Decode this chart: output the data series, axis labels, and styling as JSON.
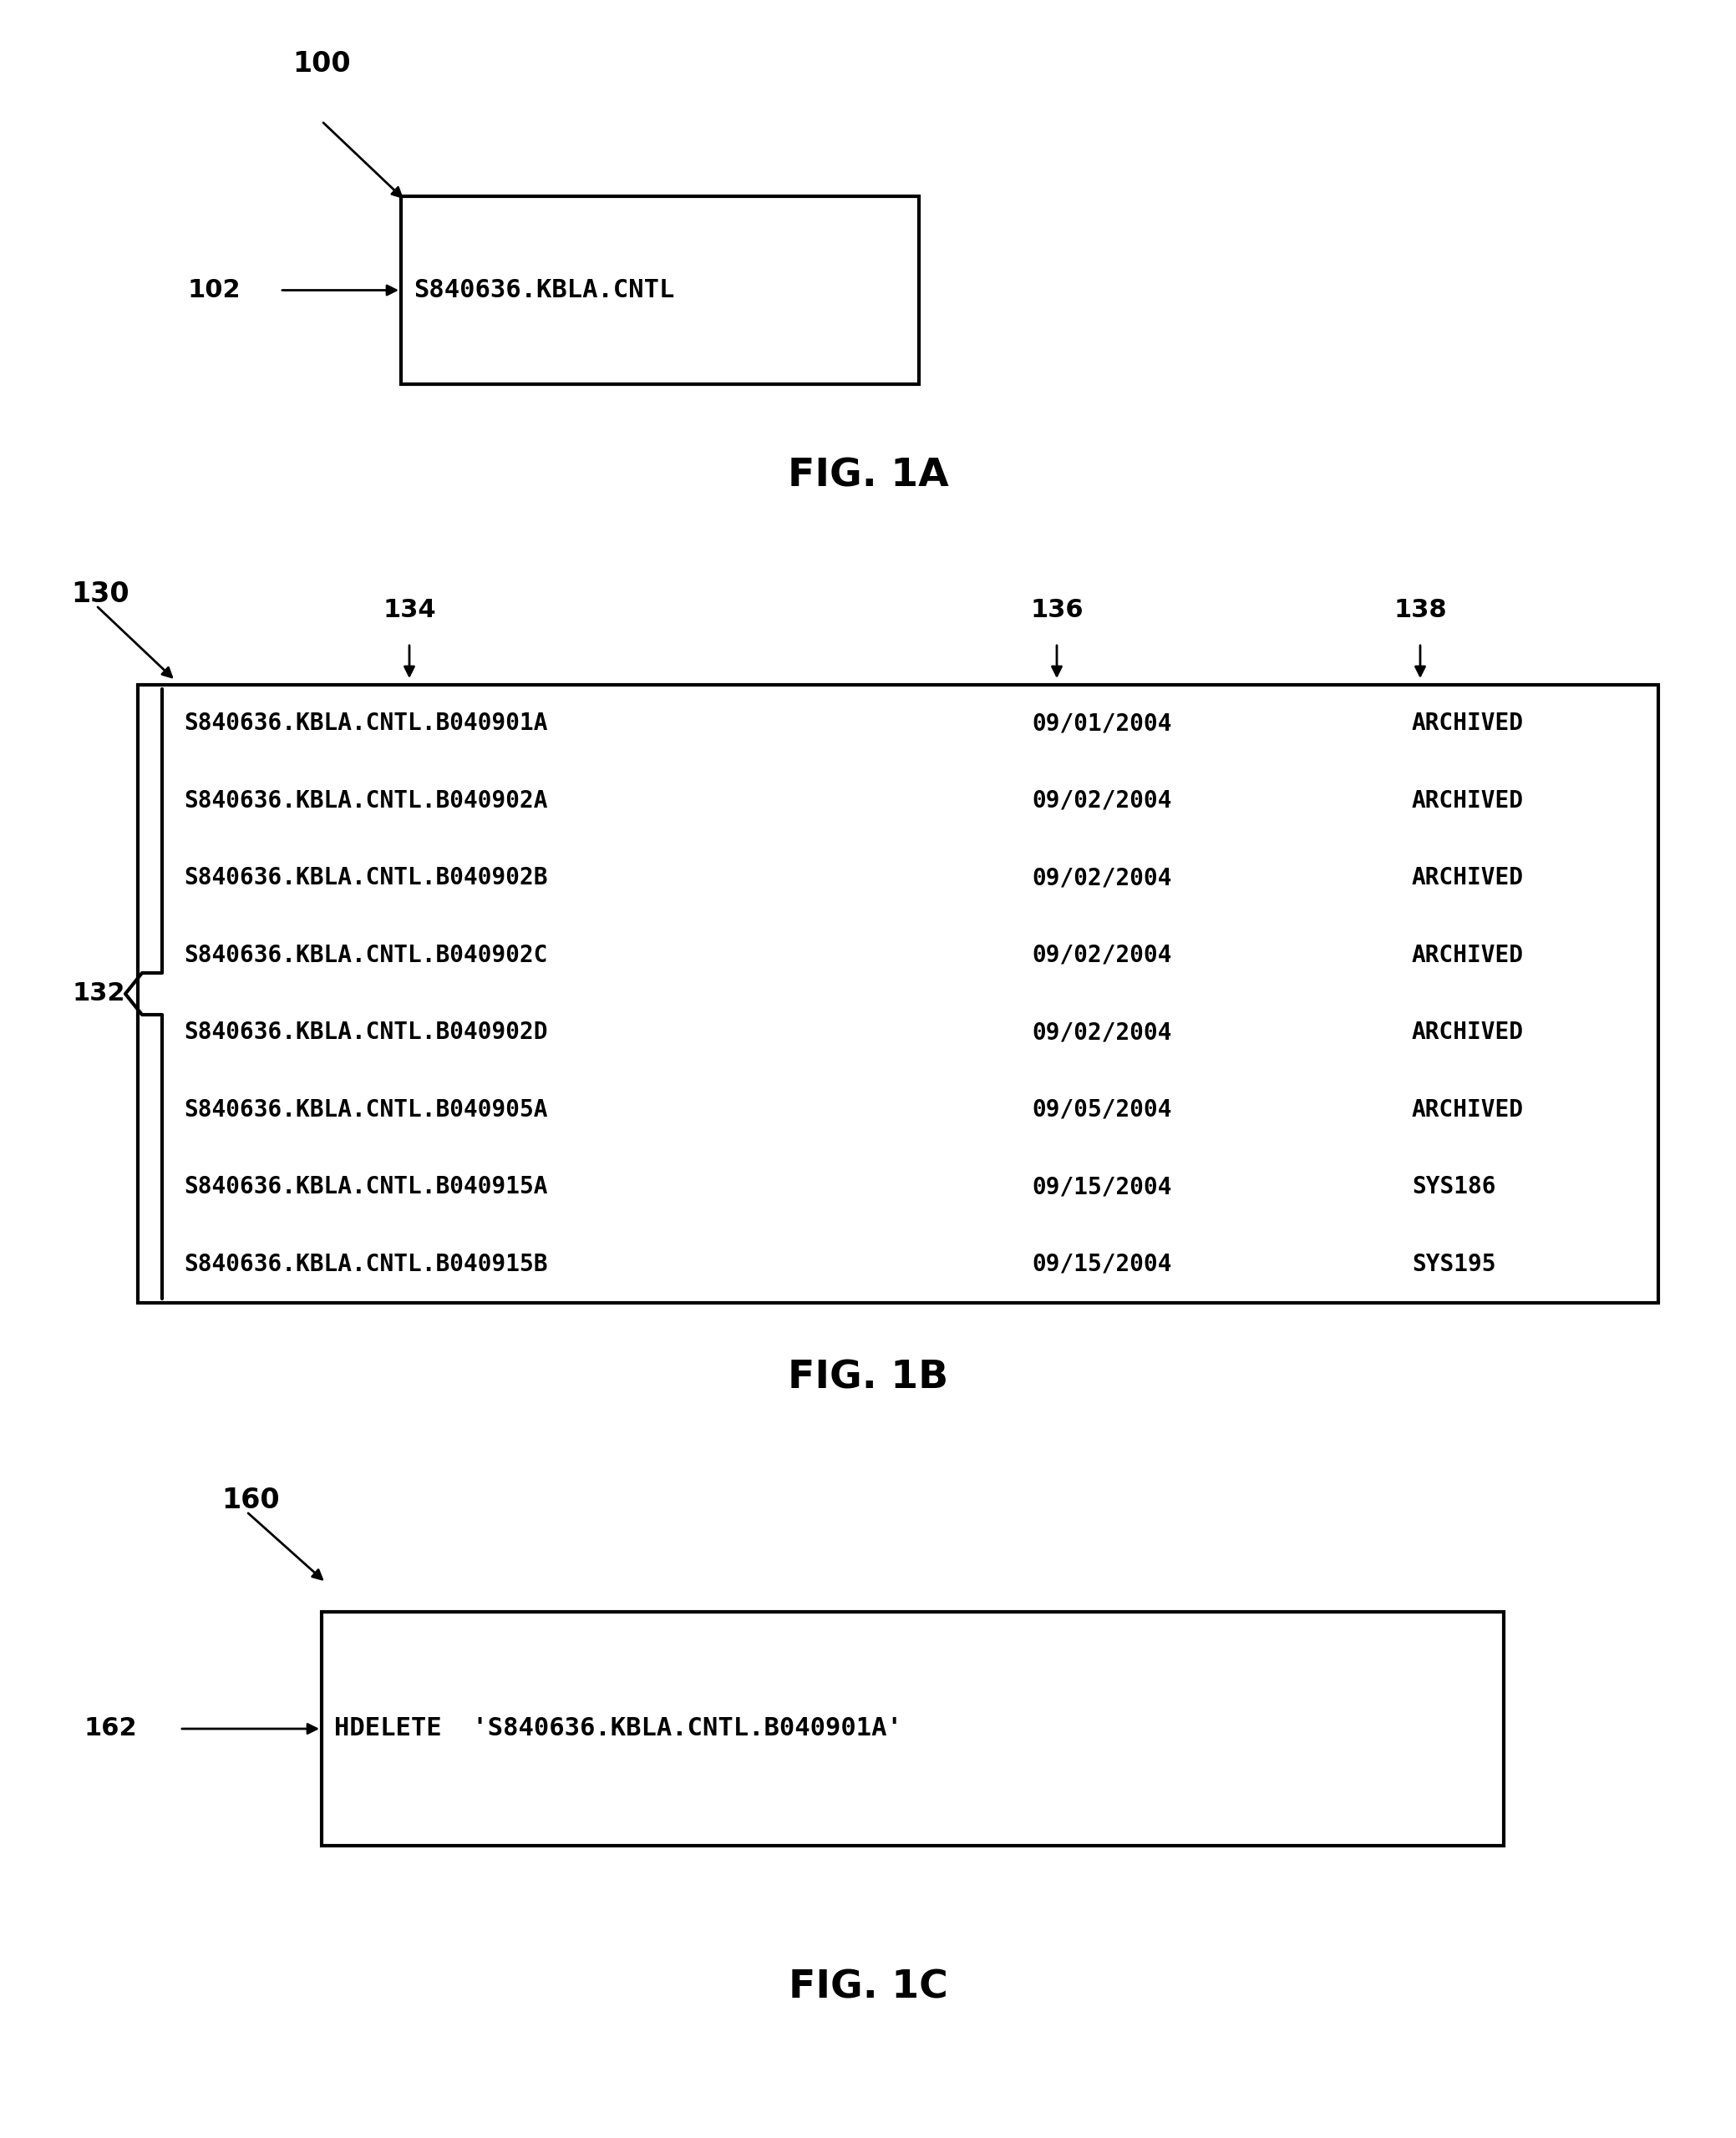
{
  "bg_color": "#ffffff",
  "fig_label_A": "FIG. 1A",
  "fig_label_B": "FIG. 1B",
  "fig_label_C": "FIG. 1C",
  "box1_label": "100",
  "box1_arrow_label": "102",
  "box1_text": "S840636.KBLA.CNTL",
  "box2_label": "130",
  "box2_ref1": "134",
  "box2_ref2": "136",
  "box2_ref3": "138",
  "box2_brace_label": "132",
  "box2_rows": [
    [
      "S840636.KBLA.CNTL.B040901A",
      "09/01/2004",
      "ARCHIVED"
    ],
    [
      "S840636.KBLA.CNTL.B040902A",
      "09/02/2004",
      "ARCHIVED"
    ],
    [
      "S840636.KBLA.CNTL.B040902B",
      "09/02/2004",
      "ARCHIVED"
    ],
    [
      "S840636.KBLA.CNTL.B040902C",
      "09/02/2004",
      "ARCHIVED"
    ],
    [
      "S840636.KBLA.CNTL.B040902D",
      "09/02/2004",
      "ARCHIVED"
    ],
    [
      "S840636.KBLA.CNTL.B040905A",
      "09/05/2004",
      "ARCHIVED"
    ],
    [
      "S840636.KBLA.CNTL.B040915A",
      "09/15/2004",
      "SYS186"
    ],
    [
      "S840636.KBLA.CNTL.B040915B",
      "09/15/2004",
      "SYS195"
    ]
  ],
  "box3_label": "160",
  "box3_arrow_label": "162",
  "box3_text": "HDELETE  'S840636.KBLA.CNTL.B040901A'"
}
